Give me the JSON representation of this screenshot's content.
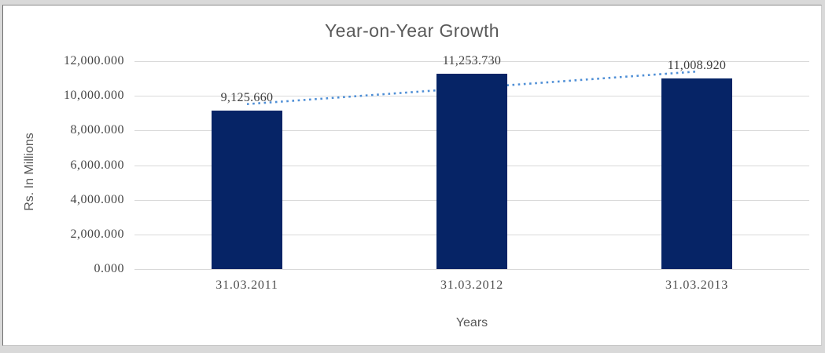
{
  "chart_data": {
    "type": "bar",
    "title": "Year-on-Year Growth",
    "xlabel": "Years",
    "ylabel": "Rs. In Millions",
    "categories": [
      "31.03.2011",
      "31.03.2012",
      "31.03.2013"
    ],
    "values": [
      9125.66,
      11253.73,
      11008.92
    ],
    "data_labels": [
      "9,125.660",
      "11,253.730",
      "11,008.920"
    ],
    "ylim": [
      0,
      12000
    ],
    "ytick_labels": [
      "12,000.000",
      "10,000.000",
      "8,000.000",
      "6,000.000",
      "4,000.000",
      "2,000.000",
      "0.000"
    ],
    "ytick_values": [
      12000,
      10000,
      8000,
      6000,
      4000,
      2000,
      0
    ],
    "grid": true,
    "legend": "none",
    "trendline": {
      "type": "linear",
      "style": "dotted",
      "color": "#4f8fd6"
    },
    "colors": {
      "bar": "#062466",
      "gridline": "#d9d9d9",
      "title_text": "#595959",
      "tick_text": "#444444",
      "plot_background": "#ffffff",
      "outer_background": "#d9d9d9"
    }
  }
}
